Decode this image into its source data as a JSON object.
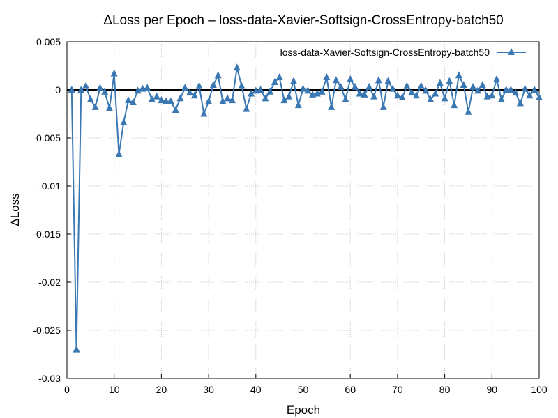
{
  "chart_data": {
    "type": "line",
    "title": "ΔLoss per Epoch – loss-data-Xavier-Softsign-CrossEntropy-batch50",
    "xlabel": "Epoch",
    "ylabel": "ΔLoss",
    "xlim": [
      0,
      100
    ],
    "ylim": [
      -0.03,
      0.005
    ],
    "xticks": [
      0,
      10,
      20,
      30,
      40,
      50,
      60,
      70,
      80,
      90,
      100
    ],
    "xtick_labels": [
      "0",
      "10",
      "20",
      "30",
      "40",
      "50",
      "60",
      "70",
      "80",
      "90",
      "100"
    ],
    "yticks": [
      -0.03,
      -0.025,
      -0.02,
      -0.015,
      -0.01,
      -0.005,
      0,
      0.005
    ],
    "ytick_labels": [
      "-0.03",
      "-0.025",
      "-0.02",
      "-0.015",
      "-0.01",
      "-0.005",
      "0",
      "0.005"
    ],
    "grid": true,
    "zero_line": true,
    "legend_position": "top-right",
    "marker": "triangle",
    "color": "#3a78b4",
    "series": [
      {
        "name": "loss-data-Xavier-Softsign-CrossEntropy-batch50",
        "x": [
          1,
          2,
          3,
          4,
          5,
          6,
          7,
          8,
          9,
          10,
          11,
          12,
          13,
          14,
          15,
          16,
          17,
          18,
          19,
          20,
          21,
          22,
          23,
          24,
          25,
          26,
          27,
          28,
          29,
          30,
          31,
          32,
          33,
          34,
          35,
          36,
          37,
          38,
          39,
          40,
          41,
          42,
          43,
          44,
          45,
          46,
          47,
          48,
          49,
          50,
          51,
          52,
          53,
          54,
          55,
          56,
          57,
          58,
          59,
          60,
          61,
          62,
          63,
          64,
          65,
          66,
          67,
          68,
          69,
          70,
          71,
          72,
          73,
          74,
          75,
          76,
          77,
          78,
          79,
          80,
          81,
          82,
          83,
          84,
          85,
          86,
          87,
          88,
          89,
          90,
          91,
          92,
          93,
          94,
          95,
          96,
          97,
          98,
          99,
          100
        ],
        "values": [
          0.0,
          -0.027,
          0.0,
          0.0004,
          -0.001,
          -0.0018,
          0.0002,
          -0.0002,
          -0.0019,
          0.0017,
          -0.0067,
          -0.0034,
          -0.0011,
          -0.0013,
          -0.0001,
          0.0001,
          0.0002,
          -0.001,
          -0.0007,
          -0.0011,
          -0.0012,
          -0.0012,
          -0.0021,
          -0.0009,
          0.0002,
          -0.0003,
          -0.0006,
          0.0004,
          -0.0025,
          -0.0012,
          0.0005,
          0.0015,
          -0.0012,
          -0.0009,
          -0.0011,
          0.0023,
          0.0004,
          -0.002,
          -0.0004,
          -0.0001,
          0.0,
          -0.0009,
          -0.0002,
          0.0008,
          0.0013,
          -0.0011,
          -0.0007,
          0.0009,
          -0.0016,
          0.0001,
          -0.0001,
          -0.0005,
          -0.0004,
          -0.0002,
          0.0013,
          -0.0018,
          0.001,
          0.0003,
          -0.001,
          0.0011,
          0.0003,
          -0.0004,
          -0.0005,
          0.0003,
          -0.0007,
          0.001,
          -0.0018,
          0.0009,
          0.0001,
          -0.0006,
          -0.0008,
          0.0004,
          -0.0003,
          -0.0006,
          0.0004,
          -0.0001,
          -0.001,
          -0.0004,
          0.0007,
          -0.0009,
          0.0009,
          -0.0016,
          0.0015,
          0.0005,
          -0.0023,
          0.0003,
          -0.0001,
          0.0005,
          -0.0007,
          -0.0006,
          0.0011,
          -0.001,
          0.0,
          0.0,
          -0.0003,
          -0.0014,
          0.0001,
          -0.0006,
          0.0,
          -0.0008
        ]
      }
    ]
  }
}
